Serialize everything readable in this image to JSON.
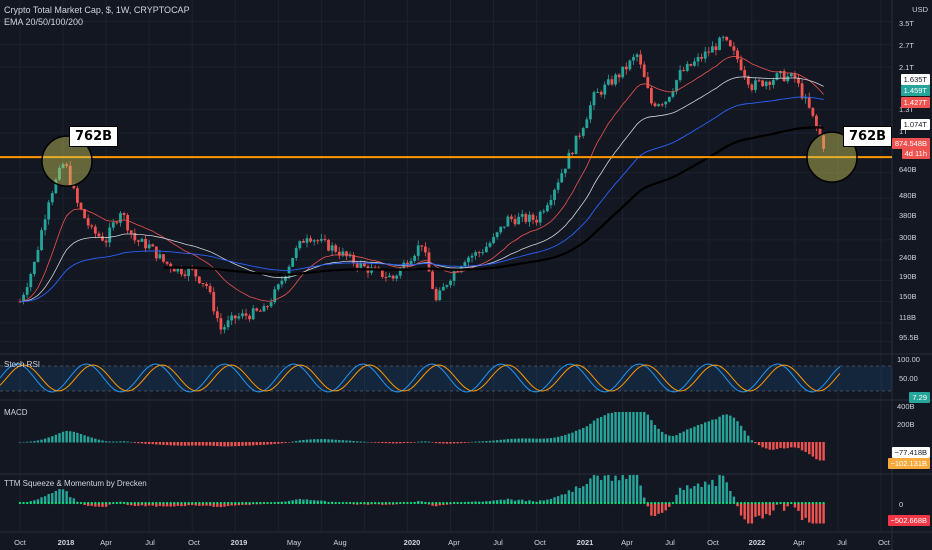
{
  "header": {
    "title": "Crypto Total Market Cap, $, 1W, CRYPTOCAP",
    "ema_label": "EMA 20/50/100/200",
    "currency": "USD"
  },
  "price_axis": {
    "ticks": [
      "3.5T",
      "2.7T",
      "2.1T",
      "1.3T",
      "1T",
      "640B",
      "480B",
      "380B",
      "300B",
      "240B",
      "190B",
      "150B",
      "118B",
      "95.5B"
    ],
    "tags": [
      {
        "text": "1.635T",
        "color": "#ffffff",
        "text_color": "#131722"
      },
      {
        "text": "1.459T",
        "color": "#26a69a"
      },
      {
        "text": "1.427T",
        "color": "#ef5350"
      },
      {
        "text": "1.074T",
        "color": "#ffffff",
        "text_color": "#131722"
      },
      {
        "text": "874.548B",
        "color": "#ef5350"
      },
      {
        "text": "4d 11h",
        "color": "#ef5350"
      }
    ]
  },
  "callouts": [
    "762B",
    "762B"
  ],
  "panels": {
    "stoch": {
      "name": "Stoch RSI",
      "ticks": [
        "100.00",
        "50.00"
      ],
      "value": "7.29",
      "value_color": "#26a69a"
    },
    "macd": {
      "name": "MACD",
      "ticks": [
        "400B",
        "200B"
      ],
      "values": [
        {
          "text": "−77.418B",
          "color": "#ffffff",
          "text_color": "#131722"
        },
        {
          "text": "−102.131B",
          "color": "#f7a93b"
        }
      ]
    },
    "ttm": {
      "name": "TTM Squeeze & Momentum by Drecken",
      "ticks": [
        "0"
      ],
      "value": "−502.668B",
      "value_color": "#f23645"
    }
  },
  "time_axis": [
    "Oct",
    "2018",
    "Apr",
    "Jul",
    "Oct",
    "2019",
    "May",
    "Aug",
    "2020",
    "Apr",
    "Jul",
    "Oct",
    "2021",
    "Apr",
    "Jul",
    "Oct",
    "2022",
    "Apr",
    "Jul",
    "Oct"
  ],
  "colors": {
    "up": "#26a69a",
    "down": "#ef5350",
    "support": "#ff9800",
    "ema20": "#ef5350",
    "ema50": "#d1d4dc",
    "ema100": "#2962ff",
    "ema200": "#000000"
  },
  "chart_data": {
    "type": "candlestick",
    "title": "Crypto Total Market Cap, $, 1W, CRYPTOCAP",
    "y_unit": "USD (billions)",
    "y_scale": "log",
    "ylim": [
      85,
      3900
    ],
    "x_range": [
      "2017-10",
      "2022-10"
    ],
    "support_level": 762,
    "close_series_billions": [
      [
        "2017-10",
        150
      ],
      [
        "2017-11",
        230
      ],
      [
        "2017-12",
        480
      ],
      [
        "2018-01",
        700
      ],
      [
        "2018-01",
        762
      ],
      [
        "2018-02",
        450
      ],
      [
        "2018-03",
        330
      ],
      [
        "2018-04",
        300
      ],
      [
        "2018-05",
        420
      ],
      [
        "2018-06",
        300
      ],
      [
        "2018-07",
        280
      ],
      [
        "2018-08",
        235
      ],
      [
        "2018-09",
        215
      ],
      [
        "2018-10",
        210
      ],
      [
        "2018-11",
        180
      ],
      [
        "2018-12",
        110
      ],
      [
        "2019-01",
        125
      ],
      [
        "2019-03",
        135
      ],
      [
        "2019-04",
        175
      ],
      [
        "2019-05",
        250
      ],
      [
        "2019-06",
        320
      ],
      [
        "2019-07",
        290
      ],
      [
        "2019-08",
        270
      ],
      [
        "2019-09",
        240
      ],
      [
        "2019-10",
        220
      ],
      [
        "2019-12",
        195
      ],
      [
        "2020-01",
        240
      ],
      [
        "2020-02",
        290
      ],
      [
        "2020-03",
        150
      ],
      [
        "2020-04",
        200
      ],
      [
        "2020-05",
        245
      ],
      [
        "2020-06",
        260
      ],
      [
        "2020-07",
        300
      ],
      [
        "2020-08",
        380
      ],
      [
        "2020-10",
        380
      ],
      [
        "2020-11",
        500
      ],
      [
        "2020-12",
        700
      ],
      [
        "2021-01",
        1000
      ],
      [
        "2021-02",
        1500
      ],
      [
        "2021-04",
        2000
      ],
      [
        "2021-05",
        2400
      ],
      [
        "2021-06",
        1400
      ],
      [
        "2021-07",
        1450
      ],
      [
        "2021-08",
        1950
      ],
      [
        "2021-09",
        2200
      ],
      [
        "2021-11",
        2850
      ],
      [
        "2021-12",
        2300
      ],
      [
        "2022-01",
        1700
      ],
      [
        "2022-02",
        1800
      ],
      [
        "2022-03",
        1900
      ],
      [
        "2022-04",
        1850
      ],
      [
        "2022-05",
        1300
      ],
      [
        "2022-06",
        874.548
      ]
    ]
  }
}
